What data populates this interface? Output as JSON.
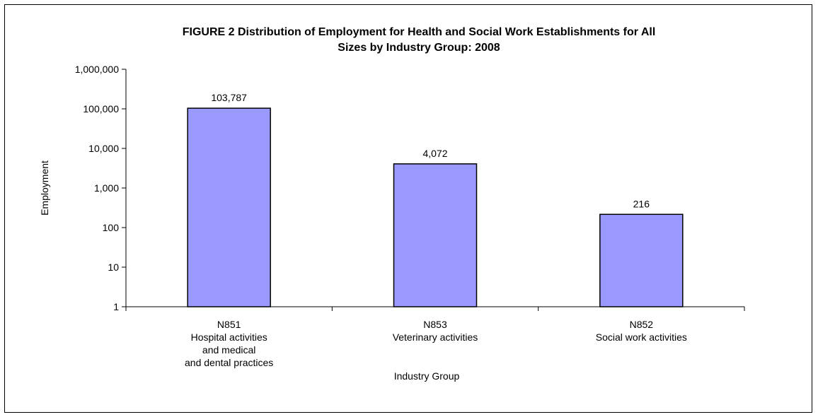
{
  "chart_data": {
    "type": "bar",
    "title_lines": [
      "FIGURE 2  Distribution of Employment for Health and Social Work Establishments for All",
      "Sizes by Industry Group:  2008"
    ],
    "xlabel": "Industry Group",
    "ylabel": "Employment",
    "yscale": "log",
    "ylim": [
      1,
      1000000
    ],
    "yticks": [
      1,
      10,
      100,
      1000,
      10000,
      100000,
      1000000
    ],
    "ytick_labels": [
      "1",
      "10",
      "100",
      "1,000",
      "10,000",
      "100,000",
      "1,000,000"
    ],
    "grid": false,
    "legend": "none",
    "bar_color": "#9999ff",
    "categories": [
      {
        "lines": [
          "N851",
          "Hospital activities",
          "and medical",
          "and dental practices"
        ]
      },
      {
        "lines": [
          "N853",
          "Veterinary activities"
        ]
      },
      {
        "lines": [
          "N852",
          "Social work activities"
        ]
      }
    ],
    "values": [
      103787,
      4072,
      216
    ],
    "value_labels": [
      "103,787",
      "4,072",
      "216"
    ]
  }
}
